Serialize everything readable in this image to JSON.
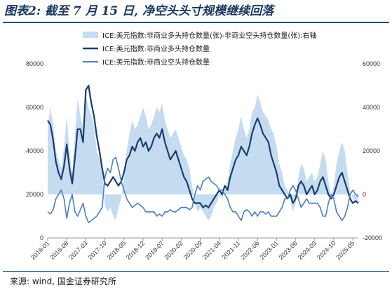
{
  "title": "图表2: 截至 7 月 15 日, 净空头头寸规模继续回落",
  "source": "来源: wind, 国金证券研究所",
  "colors": {
    "net": "#c5dcf0",
    "long": "#173f6e",
    "short": "#4a7fc1",
    "axis": "#999999",
    "title": "#17375e"
  },
  "chart_data": {
    "type": "line",
    "x_ticks": [
      "2016-01",
      "2016-08",
      "2017-03",
      "2017-10",
      "2018-05",
      "2018-12",
      "2019-07",
      "2020-02",
      "2020-09",
      "2021-04",
      "2021-11",
      "2022-06",
      "2023-01",
      "2023-08",
      "2024-03",
      "2024-10",
      "2025-05"
    ],
    "x_range": [
      "2016-01",
      "2025-07"
    ],
    "y_left": {
      "ticks": [
        "0",
        "20000",
        "40000",
        "60000",
        "80000"
      ],
      "range": [
        0,
        80000
      ]
    },
    "y_right": {
      "ticks": [
        "-20000",
        "0",
        "20000",
        "40000",
        "60000"
      ],
      "range": [
        -20000,
        60000
      ]
    },
    "x": [
      "2016-01",
      "2016-02",
      "2016-03",
      "2016-04",
      "2016-05",
      "2016-06",
      "2016-07",
      "2016-08",
      "2016-09",
      "2016-10",
      "2016-11",
      "2016-12",
      "2017-01",
      "2017-02",
      "2017-03",
      "2017-04",
      "2017-05",
      "2017-06",
      "2017-07",
      "2017-08",
      "2017-09",
      "2017-10",
      "2017-11",
      "2017-12",
      "2018-01",
      "2018-02",
      "2018-03",
      "2018-04",
      "2018-05",
      "2018-06",
      "2018-07",
      "2018-08",
      "2018-09",
      "2018-10",
      "2018-11",
      "2018-12",
      "2019-01",
      "2019-02",
      "2019-03",
      "2019-04",
      "2019-05",
      "2019-06",
      "2019-07",
      "2019-08",
      "2019-09",
      "2019-10",
      "2019-11",
      "2019-12",
      "2020-01",
      "2020-02",
      "2020-03",
      "2020-04",
      "2020-05",
      "2020-06",
      "2020-07",
      "2020-08",
      "2020-09",
      "2020-10",
      "2020-11",
      "2020-12",
      "2021-01",
      "2021-02",
      "2021-03",
      "2021-04",
      "2021-05",
      "2021-06",
      "2021-07",
      "2021-08",
      "2021-09",
      "2021-10",
      "2021-11",
      "2021-12",
      "2022-01",
      "2022-02",
      "2022-03",
      "2022-04",
      "2022-05",
      "2022-06",
      "2022-07",
      "2022-08",
      "2022-09",
      "2022-10",
      "2022-11",
      "2022-12",
      "2023-01",
      "2023-02",
      "2023-03",
      "2023-04",
      "2023-05",
      "2023-06",
      "2023-07",
      "2023-08",
      "2023-09",
      "2023-10",
      "2023-11",
      "2023-12",
      "2024-01",
      "2024-02",
      "2024-03",
      "2024-04",
      "2024-05",
      "2024-06",
      "2024-07",
      "2024-08",
      "2024-09",
      "2024-10",
      "2024-11",
      "2024-12",
      "2025-01",
      "2025-02",
      "2025-03",
      "2025-04",
      "2025-05",
      "2025-06",
      "2025-07"
    ],
    "series": [
      {
        "name": "ICE:美元指数:非商业多头持仓数量(张)-非商业空头持仓数量(张):右轴",
        "axis": "right",
        "style": "area",
        "values": [
          30000,
          40000,
          32000,
          20000,
          16000,
          12000,
          22000,
          36000,
          20000,
          10000,
          28000,
          44000,
          36000,
          30000,
          46000,
          40000,
          36000,
          32000,
          20000,
          16000,
          12000,
          -5000,
          -8000,
          -6000,
          -10000,
          -12000,
          -6000,
          -2000,
          8000,
          20000,
          28000,
          34000,
          30000,
          32000,
          36000,
          40000,
          36000,
          30000,
          32000,
          36000,
          40000,
          38000,
          42000,
          34000,
          30000,
          26000,
          28000,
          30000,
          26000,
          22000,
          18000,
          16000,
          12000,
          4000,
          -4000,
          -8000,
          -6000,
          -8000,
          -10000,
          -12000,
          -10000,
          -6000,
          -4000,
          0,
          -2000,
          2000,
          6000,
          14000,
          20000,
          26000,
          30000,
          36000,
          30000,
          26000,
          30000,
          38000,
          40000,
          46000,
          42000,
          38000,
          36000,
          34000,
          30000,
          28000,
          22000,
          14000,
          10000,
          4000,
          2000,
          -2000,
          -8000,
          -4000,
          8000,
          14000,
          12000,
          6000,
          8000,
          10000,
          6000,
          8000,
          14000,
          20000,
          16000,
          6000,
          0,
          4000,
          14000,
          20000,
          24000,
          20000,
          10000,
          2000,
          -2000,
          -4000,
          -2000
        ]
      },
      {
        "name": "ICE:美元指数:非商业多头持仓数量",
        "axis": "left",
        "style": "line",
        "values": [
          54000,
          52000,
          45000,
          35000,
          30000,
          27000,
          33000,
          43000,
          32000,
          25000,
          37000,
          50000,
          50000,
          44000,
          68000,
          70000,
          62000,
          56000,
          47000,
          40000,
          32000,
          25000,
          24000,
          26000,
          28000,
          26000,
          24000,
          26000,
          30000,
          36000,
          38000,
          42000,
          40000,
          44000,
          46000,
          42000,
          44000,
          40000,
          42000,
          46000,
          48000,
          46000,
          50000,
          44000,
          40000,
          36000,
          38000,
          40000,
          36000,
          32000,
          28000,
          26000,
          22000,
          18000,
          16000,
          16000,
          16000,
          14000,
          15000,
          14000,
          16000,
          18000,
          20000,
          22000,
          20000,
          24000,
          22000,
          28000,
          32000,
          36000,
          38000,
          42000,
          40000,
          38000,
          42000,
          48000,
          52000,
          55000,
          52000,
          48000,
          46000,
          44000,
          38000,
          34000,
          30000,
          24000,
          22000,
          20000,
          18000,
          20000,
          16000,
          18000,
          24000,
          26000,
          24000,
          20000,
          22000,
          24000,
          20000,
          22000,
          26000,
          28000,
          24000,
          20000,
          18000,
          20000,
          24000,
          28000,
          30000,
          26000,
          22000,
          18000,
          16000,
          17000,
          16000
        ]
      },
      {
        "name": "ICE:美元指数:非商业空头持仓数量",
        "axis": "left",
        "style": "line",
        "values": [
          12000,
          11000,
          13000,
          18000,
          20000,
          22000,
          18000,
          9000,
          16000,
          20000,
          12000,
          10000,
          13000,
          16000,
          10000,
          7000,
          8000,
          9000,
          10000,
          12000,
          14000,
          28000,
          32000,
          30000,
          36000,
          37000,
          32000,
          26000,
          22000,
          18000,
          16000,
          14000,
          15000,
          16000,
          15000,
          14000,
          12000,
          12000,
          12000,
          12000,
          10000,
          11000,
          10000,
          12000,
          12000,
          13000,
          12000,
          12000,
          13000,
          14000,
          14000,
          14000,
          13000,
          14000,
          20000,
          24000,
          22000,
          26000,
          27000,
          28000,
          26000,
          25000,
          24000,
          22000,
          22000,
          20000,
          18000,
          14000,
          12000,
          12000,
          10000,
          8000,
          12000,
          13000,
          12000,
          10000,
          12000,
          10000,
          12000,
          12000,
          11000,
          12000,
          10000,
          10000,
          10000,
          12000,
          14000,
          18000,
          18000,
          22000,
          24000,
          22000,
          18000,
          14000,
          16000,
          18000,
          16000,
          16000,
          16000,
          16000,
          14000,
          10000,
          10000,
          16000,
          20000,
          18000,
          12000,
          10000,
          8000,
          10000,
          14000,
          20000,
          22000,
          20000,
          19000
        ]
      }
    ],
    "legend": {
      "position": "top",
      "items": [
        "ICE:美元指数:非商业多头持仓数量(张)-非商业空头持仓数量(张):右轴",
        "ICE:美元指数:非商业多头持仓数量",
        "ICE:美元指数:非商业空头持仓数量"
      ]
    }
  }
}
